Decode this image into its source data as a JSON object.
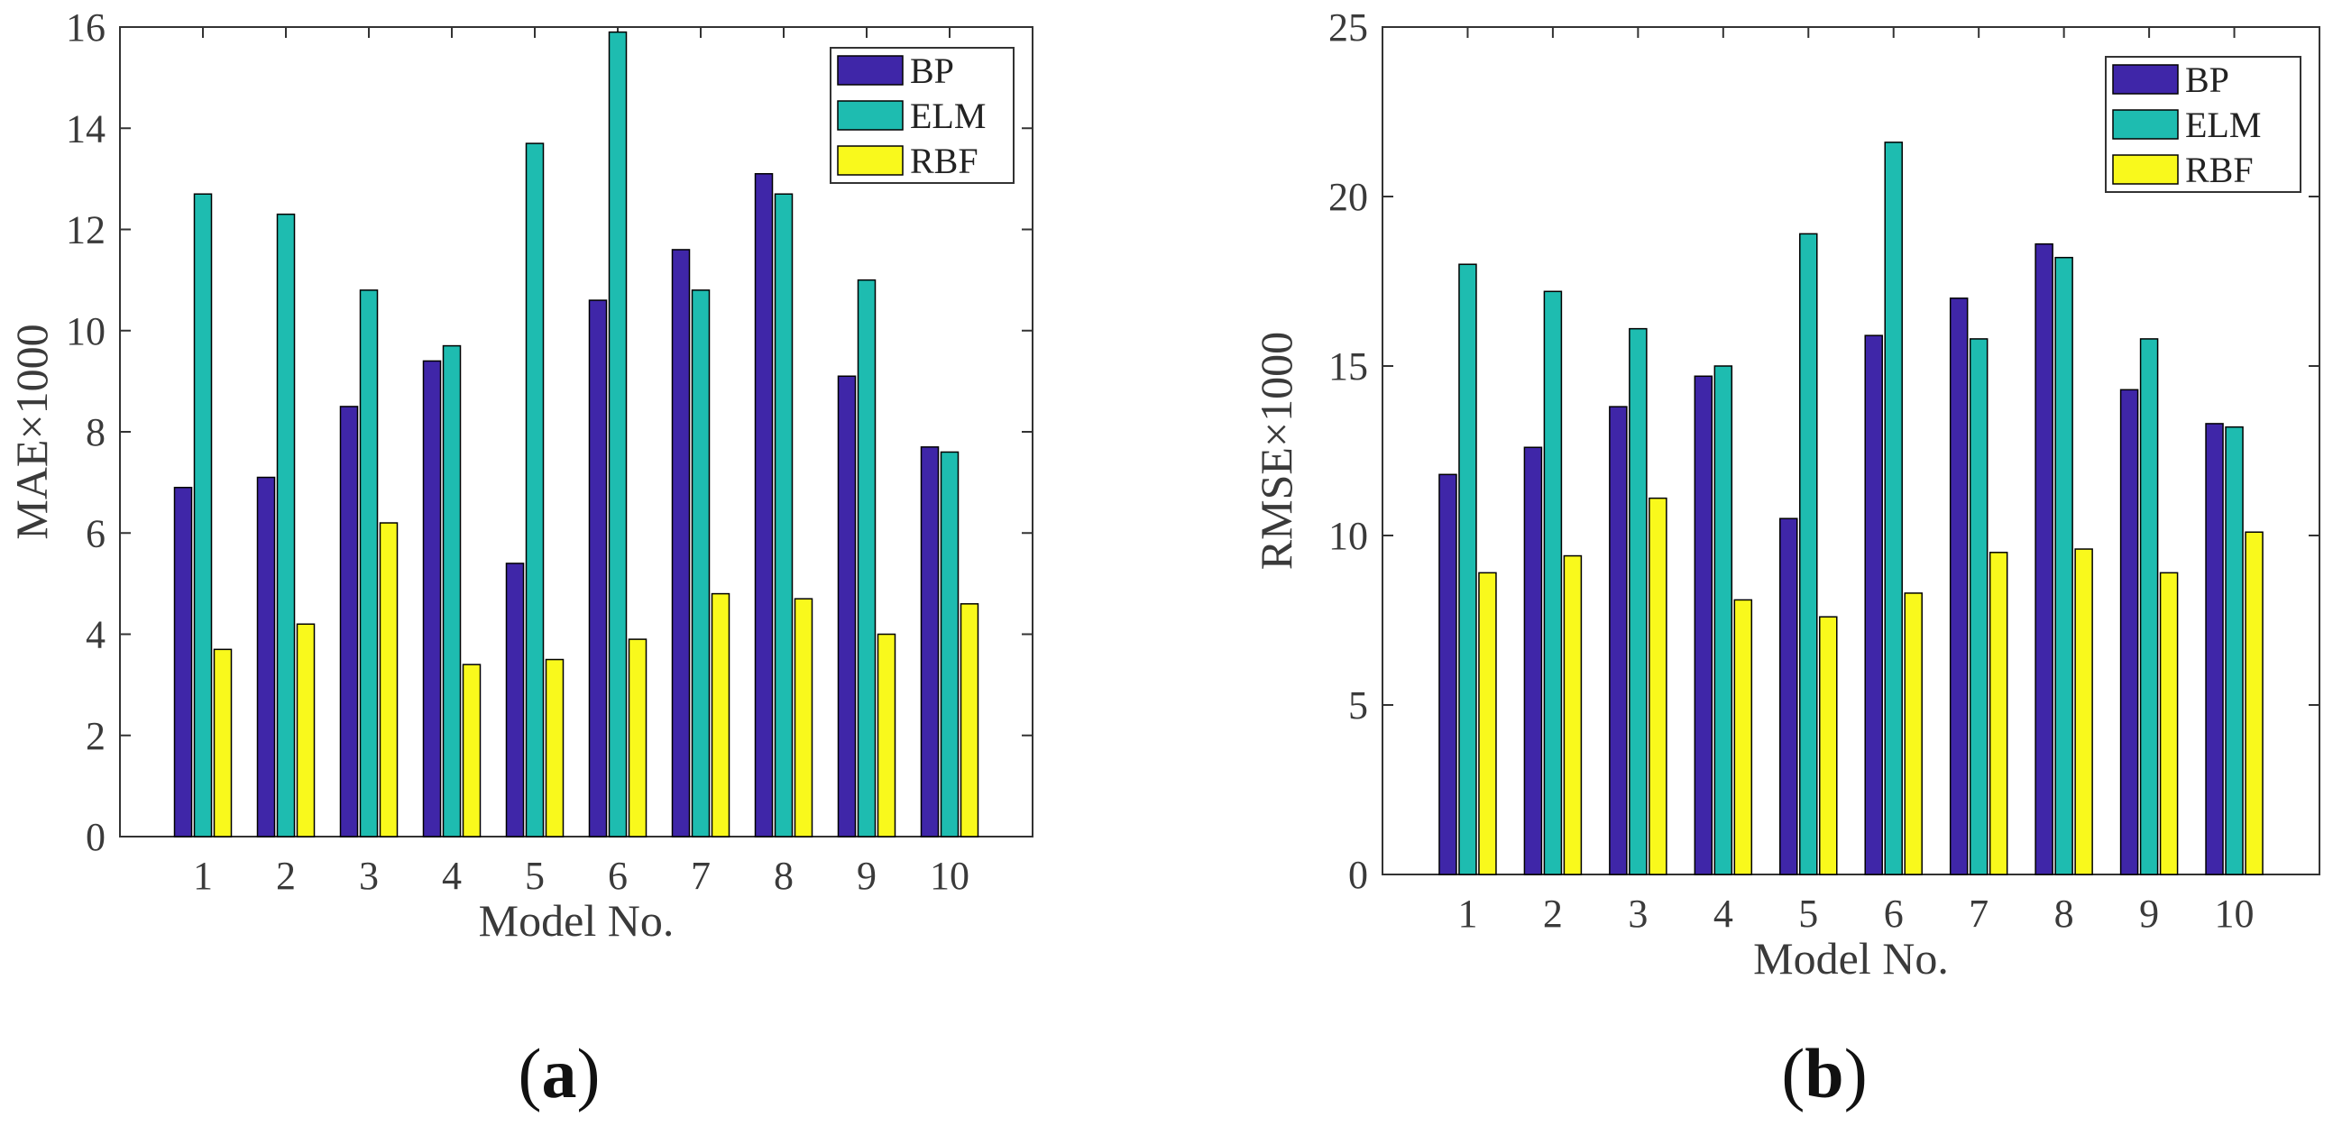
{
  "chart_data": [
    {
      "type": "bar",
      "panel_label": "a",
      "xlabel": "Model No.",
      "ylabel": "MAE×1000",
      "ylim": [
        0,
        16
      ],
      "yticks": [
        0,
        2,
        4,
        6,
        8,
        10,
        12,
        14,
        16
      ],
      "categories": [
        "1",
        "2",
        "3",
        "4",
        "5",
        "6",
        "7",
        "8",
        "9",
        "10"
      ],
      "legend_position": "top-right",
      "series": [
        {
          "name": "BP",
          "color": "#3f26a8",
          "values": [
            6.9,
            7.1,
            8.5,
            9.4,
            5.4,
            10.6,
            11.6,
            13.1,
            9.1,
            7.7
          ]
        },
        {
          "name": "ELM",
          "color": "#1ebcb0",
          "values": [
            12.7,
            12.3,
            10.8,
            9.7,
            13.7,
            15.9,
            10.8,
            12.7,
            11.0,
            7.6
          ]
        },
        {
          "name": "RBF",
          "color": "#f9f91c",
          "values": [
            3.7,
            4.2,
            6.2,
            3.4,
            3.5,
            3.9,
            4.8,
            4.7,
            4.0,
            4.6
          ]
        }
      ]
    },
    {
      "type": "bar",
      "panel_label": "b",
      "xlabel": "Model No.",
      "ylabel": "RMSE×1000",
      "ylim": [
        0,
        25
      ],
      "yticks": [
        0,
        5,
        10,
        15,
        20,
        25
      ],
      "categories": [
        "1",
        "2",
        "3",
        "4",
        "5",
        "6",
        "7",
        "8",
        "9",
        "10"
      ],
      "legend_position": "top-right",
      "series": [
        {
          "name": "BP",
          "color": "#3f26a8",
          "values": [
            11.8,
            12.6,
            13.8,
            14.7,
            10.5,
            15.9,
            17.0,
            18.6,
            14.3,
            13.3
          ]
        },
        {
          "name": "ELM",
          "color": "#1ebcb0",
          "values": [
            18.0,
            17.2,
            16.1,
            15.0,
            18.9,
            21.6,
            15.8,
            18.2,
            15.8,
            13.2
          ]
        },
        {
          "name": "RBF",
          "color": "#f9f91c",
          "values": [
            8.9,
            9.4,
            11.1,
            8.1,
            7.6,
            8.3,
            9.5,
            9.6,
            8.9,
            10.1
          ]
        }
      ]
    }
  ]
}
